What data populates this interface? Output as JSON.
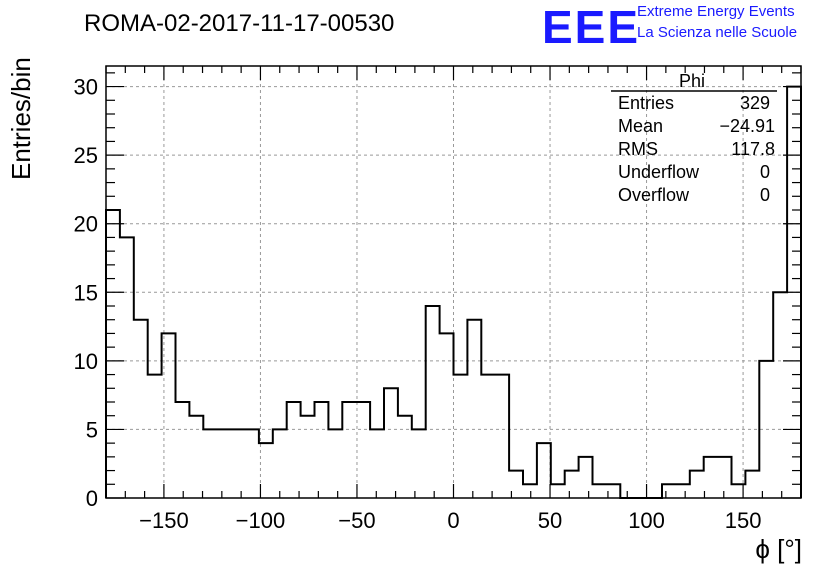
{
  "title": "ROMA-02-2017-11-17-00530",
  "logo": {
    "mark": "EEE",
    "line1": "Extreme Energy Events",
    "line2": "La Scienza nelle Scuole",
    "color": "#1a1aff"
  },
  "stats": {
    "name": "Phi",
    "entries_label": "Entries",
    "entries": "329",
    "mean_label": "Mean",
    "mean": "−24.91",
    "rms_label": "RMS",
    "rms": "117.8",
    "underflow_label": "Underflow",
    "underflow": "0",
    "overflow_label": "Overflow",
    "overflow": "0"
  },
  "chart_data": {
    "type": "histogram",
    "xlabel": "ϕ [°]",
    "ylabel": "Entries/bin",
    "xlim": [
      -180,
      180
    ],
    "ylim": [
      0,
      31.5
    ],
    "bin_width": 7.2,
    "x_ticks": [
      -150,
      -100,
      -50,
      0,
      50,
      100,
      150
    ],
    "y_ticks": [
      0,
      5,
      10,
      15,
      20,
      25,
      30
    ],
    "grid": true,
    "legend_position": "top-right",
    "values": [
      21,
      19,
      13,
      9,
      12,
      7,
      6,
      5,
      5,
      5,
      5,
      4,
      5,
      7,
      6,
      7,
      5,
      7,
      7,
      5,
      8,
      6,
      5,
      14,
      12,
      9,
      13,
      9,
      9,
      2,
      1,
      4,
      1,
      2,
      3,
      1,
      1,
      0,
      0,
      0,
      1,
      1,
      2,
      3,
      3,
      1,
      2,
      10,
      15,
      30
    ]
  }
}
